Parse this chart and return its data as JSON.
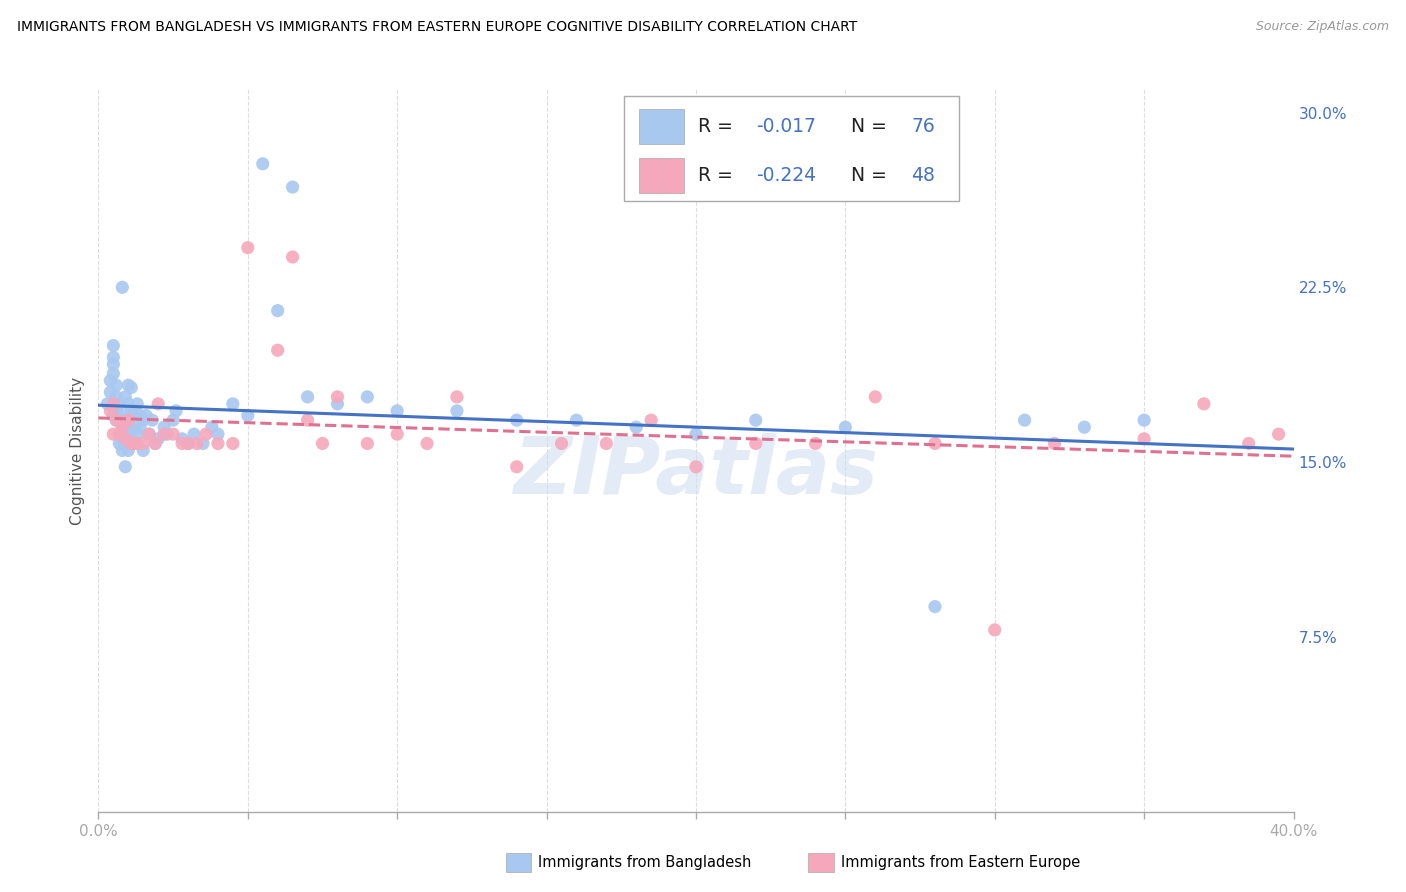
{
  "title": "IMMIGRANTS FROM BANGLADESH VS IMMIGRANTS FROM EASTERN EUROPE COGNITIVE DISABILITY CORRELATION CHART",
  "source": "Source: ZipAtlas.com",
  "ylabel": "Cognitive Disability",
  "xlim": [
    0.0,
    0.4
  ],
  "ylim": [
    0.0,
    0.31
  ],
  "bangladesh_color": "#a8c8f0",
  "eastern_color": "#f5a8bc",
  "bangladesh_line_color": "#4472c4",
  "eastern_line_color": "#e07090",
  "legend_R1": "-0.017",
  "legend_N1": "76",
  "legend_R2": "-0.224",
  "legend_N2": "48",
  "watermark": "ZIPatlas",
  "right_yticks": [
    0.0,
    0.075,
    0.15,
    0.225,
    0.3
  ],
  "right_yticklabels": [
    "",
    "7.5%",
    "15.0%",
    "22.5%",
    "30.0%"
  ]
}
